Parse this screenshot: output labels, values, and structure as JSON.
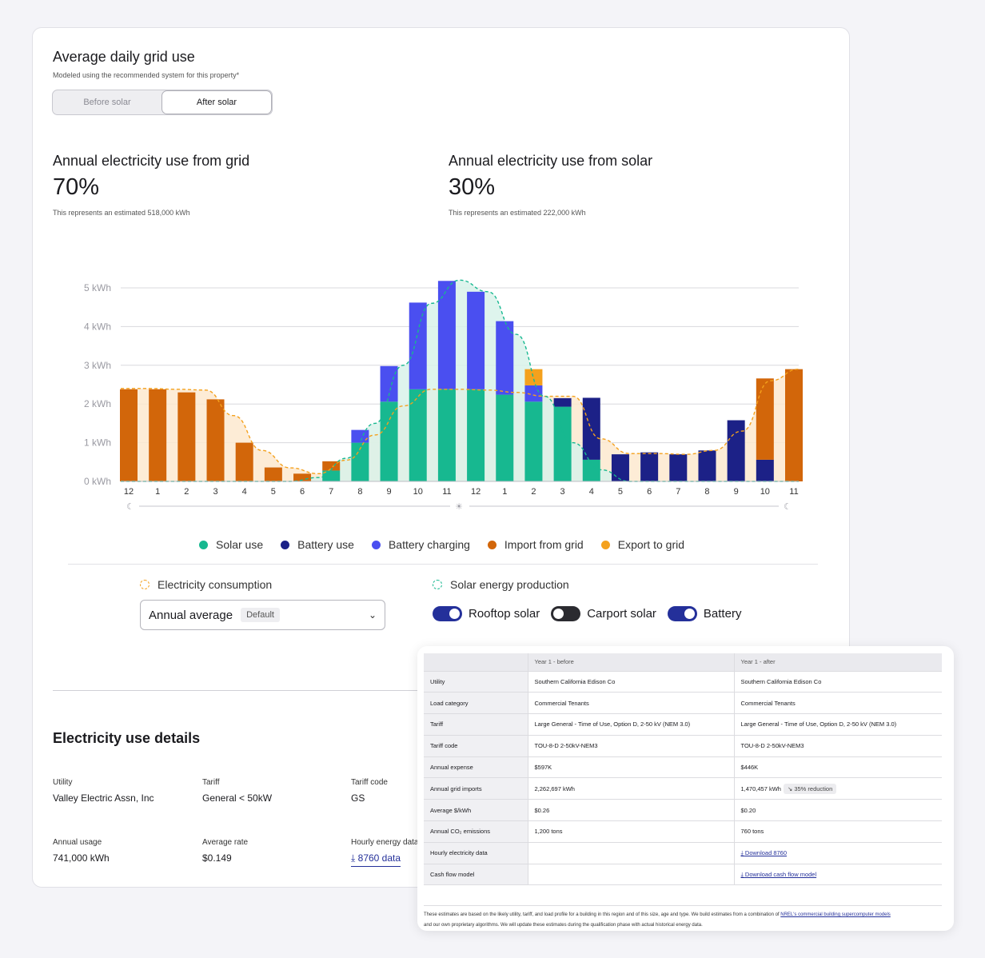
{
  "main": {
    "title": "Average daily grid use",
    "subtitle": "Modeled using the recommended system for this property*",
    "seg_before": "Before solar",
    "seg_after": "After solar",
    "grid_label": "Annual electricity use from grid",
    "grid_value": "70%",
    "grid_note": "This represents an estimated 518,000 kWh",
    "solar_label": "Annual electricity use from solar",
    "solar_value": "30%",
    "solar_note": "This represents an estimated 222,000 kWh"
  },
  "legend": {
    "solar_use": "Solar use",
    "battery_use": "Battery use",
    "battery_charging": "Battery charging",
    "import_grid": "Import from grid",
    "export_grid": "Export to grid"
  },
  "controls": {
    "consumption_label": "Electricity consumption",
    "production_label": "Solar energy production",
    "select_value": "Annual average",
    "select_badge": "Default",
    "rooftop": "Rooftop solar",
    "carport": "Carport solar",
    "battery": "Battery"
  },
  "details": {
    "title": "Electricity use details",
    "utility_label": "Utility",
    "utility_value": "Valley Electric Assn, Inc",
    "tariff_label": "Tariff",
    "tariff_value": "General < 50kW",
    "tariff_code_label": "Tariff code",
    "tariff_code_value": "GS",
    "usage_label": "Annual usage",
    "usage_value": "741,000 kWh",
    "rate_label": "Average rate",
    "rate_value": "$0.149",
    "hourly_label": "Hourly energy data",
    "hourly_link": "8760 data"
  },
  "comparison": {
    "headers": [
      "",
      "Year 1 - before",
      "Year 1 - after"
    ],
    "rows": [
      [
        "Utility",
        "Southern California Edison Co",
        "Southern California Edison Co"
      ],
      [
        "Load category",
        "Commercial Tenants",
        "Commercial Tenants"
      ],
      [
        "Tariff",
        "Large General - Time of Use, Option D, 2-50 kV (NEM 3.0)",
        "Large General - Time of Use, Option D, 2-50 kV (NEM 3.0)"
      ],
      [
        "Tariff code",
        "TOU-8-D 2-50kV-NEM3",
        "TOU-8-D 2-50kV-NEM3"
      ],
      [
        "Annual expense",
        "$597K",
        "$446K"
      ],
      [
        "Annual grid imports",
        "2,262,697 kWh",
        "1,470,457 kWh"
      ],
      [
        "Average $/kWh",
        "$0.26",
        "$0.20"
      ],
      [
        "Annual CO₂ emissions",
        "1,200 tons",
        "760 tons"
      ],
      [
        "Hourly electricity data",
        "",
        "Download 8760"
      ],
      [
        "Cash flow model",
        "",
        "Download cash flow model"
      ]
    ],
    "reduction_badge": "35% reduction",
    "footnote_a": "These estimates are based on the likely utility, tariff, and load profile for a building in this region and of this size, age and type. We build estimates from a combination of ",
    "footnote_link": "NREL's commercial building supercomputer models",
    "footnote_b": "and our own proprietary algorithms. We will update these estimates during the qualification phase with actual historical energy data."
  },
  "colors": {
    "solar": "#17b890",
    "battery_use": "#1c2187",
    "battery_charging": "#4a4ff0",
    "import": "#d2660a",
    "export": "#f4a11d",
    "consumption_fill": "#fde9cf",
    "production_fill": "#d8f2ea"
  },
  "chart_data": {
    "type": "bar",
    "stacked": true,
    "ylabel": "kWh",
    "ylim": [
      0,
      5
    ],
    "yticks": [
      "0 kWh",
      "1 kWh",
      "2 kWh",
      "3 kWh",
      "4 kWh",
      "5 kWh"
    ],
    "categories": [
      "12",
      "1",
      "2",
      "3",
      "4",
      "5",
      "6",
      "7",
      "8",
      "9",
      "10",
      "11",
      "12",
      "1",
      "2",
      "3",
      "4",
      "5",
      "6",
      "7",
      "8",
      "9",
      "10",
      "11"
    ],
    "series": [
      {
        "name": "Solar use",
        "values": [
          0,
          0,
          0,
          0,
          0,
          0,
          0,
          0.28,
          1.0,
          2.06,
          2.38,
          2.38,
          2.38,
          2.24,
          2.06,
          1.93,
          0.56,
          0,
          0,
          0,
          0,
          0,
          0,
          0
        ]
      },
      {
        "name": "Battery use",
        "values": [
          0,
          0,
          0,
          0,
          0,
          0,
          0,
          0,
          0,
          0,
          0,
          0,
          0,
          0,
          0,
          0.22,
          1.6,
          0.7,
          0.75,
          0.7,
          0.8,
          1.58,
          0.56,
          0
        ]
      },
      {
        "name": "Battery charging",
        "values": [
          0,
          0,
          0,
          0,
          0,
          0,
          0,
          0,
          0.33,
          0.92,
          2.24,
          2.8,
          2.52,
          1.9,
          0.42,
          0,
          0,
          0,
          0,
          0,
          0,
          0,
          0,
          0
        ]
      },
      {
        "name": "Import from grid",
        "values": [
          2.38,
          2.38,
          2.3,
          2.12,
          1.0,
          0.36,
          0.2,
          0.24,
          0,
          0,
          0,
          0,
          0,
          0,
          0,
          0,
          0,
          0,
          0,
          0,
          0,
          0,
          2.1,
          2.9
        ]
      },
      {
        "name": "Export to grid",
        "values": [
          0,
          0,
          0,
          0,
          0,
          0,
          0,
          0,
          0,
          0,
          0,
          0,
          0,
          0,
          0.42,
          0,
          0,
          0,
          0,
          0,
          0,
          0,
          0,
          0
        ]
      }
    ],
    "consumption_line": [
      2.4,
      2.4,
      2.38,
      2.36,
      1.7,
      0.8,
      0.35,
      0.2,
      0.55,
      1.2,
      1.95,
      2.38,
      2.38,
      2.36,
      2.3,
      2.2,
      2.2,
      1.1,
      0.72,
      0.72,
      0.7,
      0.8,
      1.3,
      2.6,
      2.9
    ],
    "production_line": [
      0,
      0,
      0,
      0,
      0,
      0,
      0,
      0.1,
      0.6,
      1.5,
      3.0,
      4.6,
      5.2,
      4.9,
      3.8,
      2.2,
      1.0,
      0.3,
      0,
      0,
      0,
      0,
      0,
      0,
      0
    ]
  }
}
